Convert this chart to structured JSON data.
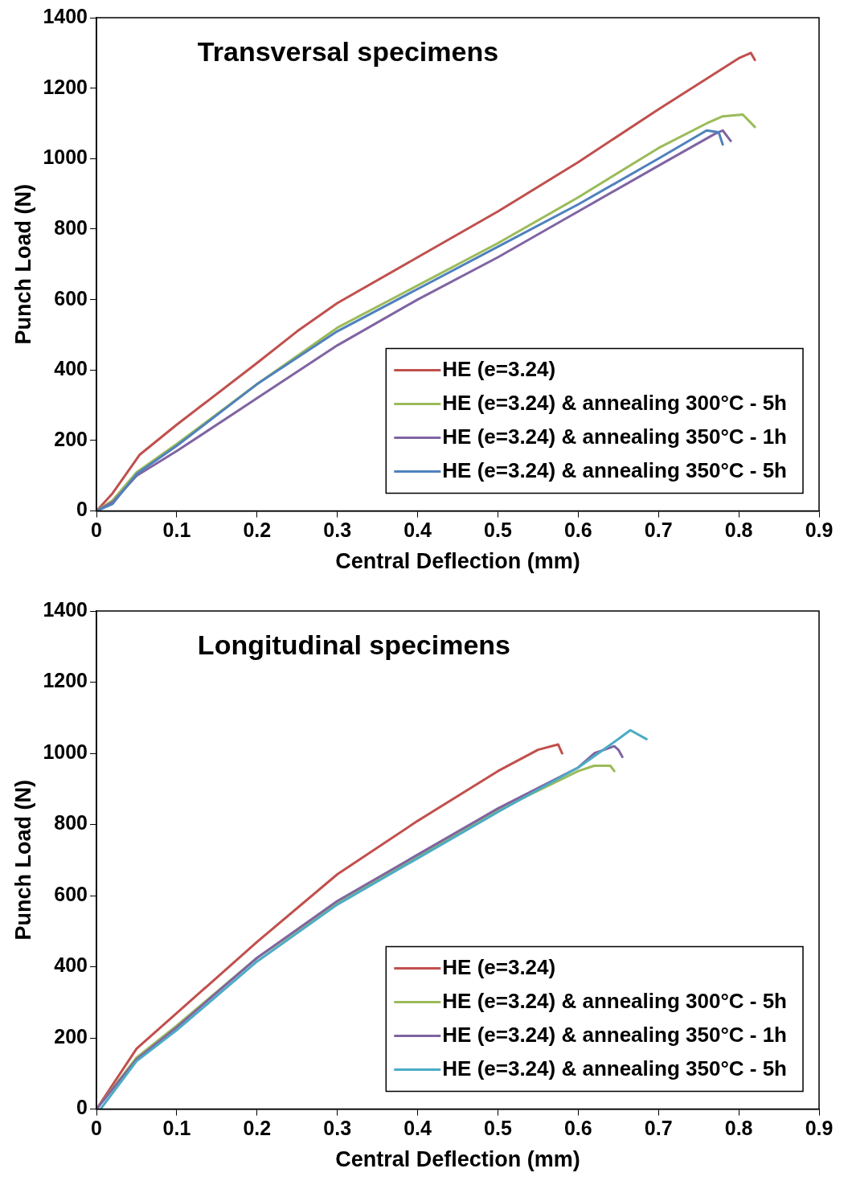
{
  "chart_data": [
    {
      "type": "line",
      "title": "Transversal specimens",
      "xlabel": "Central Deflection (mm)",
      "ylabel": "Punch Load (N)",
      "xlim": [
        0,
        0.9
      ],
      "xticks": [
        0,
        0.1,
        0.2,
        0.3,
        0.4,
        0.5,
        0.6,
        0.7,
        0.8,
        0.9
      ],
      "ylim": [
        0,
        1400
      ],
      "yticks": [
        0,
        200,
        400,
        600,
        800,
        1000,
        1200,
        1400
      ],
      "grid": false,
      "legend": "bottom right",
      "marker": "none",
      "line_style": "solid",
      "series": [
        {
          "name": "HE (e=3.24)",
          "color": "#c0504d",
          "x": [
            0,
            0.02,
            0.054,
            0.1,
            0.2,
            0.25,
            0.3,
            0.4,
            0.5,
            0.6,
            0.7,
            0.8,
            0.815,
            0.82
          ],
          "values": [
            0,
            50,
            160,
            245,
            420,
            510,
            590,
            720,
            850,
            990,
            1140,
            1285,
            1300,
            1280
          ]
        },
        {
          "name": "HE (e=3.24) & annealing 300°C - 5h",
          "color": "#9bbb59",
          "x": [
            0,
            0.02,
            0.05,
            0.1,
            0.2,
            0.3,
            0.4,
            0.5,
            0.6,
            0.7,
            0.76,
            0.78,
            0.805,
            0.82
          ],
          "values": [
            0,
            30,
            110,
            190,
            360,
            520,
            640,
            760,
            890,
            1030,
            1100,
            1120,
            1125,
            1090
          ]
        },
        {
          "name": "HE (e=3.24) & annealing 350°C - 1h",
          "color": "#8064a2",
          "x": [
            0,
            0.02,
            0.05,
            0.1,
            0.2,
            0.3,
            0.4,
            0.5,
            0.6,
            0.7,
            0.77,
            0.78,
            0.79
          ],
          "values": [
            0,
            25,
            100,
            170,
            320,
            470,
            600,
            720,
            850,
            980,
            1070,
            1080,
            1050
          ]
        },
        {
          "name": "HE (e=3.24) & annealing 350°C - 5h",
          "color": "#4f81bd",
          "x": [
            0,
            0.02,
            0.05,
            0.1,
            0.2,
            0.3,
            0.4,
            0.5,
            0.6,
            0.7,
            0.76,
            0.775,
            0.78
          ],
          "values": [
            0,
            20,
            105,
            185,
            360,
            510,
            630,
            750,
            870,
            1000,
            1080,
            1075,
            1040
          ]
        }
      ]
    },
    {
      "type": "line",
      "title": "Longitudinal specimens",
      "xlabel": "Central Deflection (mm)",
      "ylabel": "Punch Load (N)",
      "xlim": [
        0,
        0.9
      ],
      "xticks": [
        0,
        0.1,
        0.2,
        0.3,
        0.4,
        0.5,
        0.6,
        0.7,
        0.8,
        0.9
      ],
      "ylim": [
        0,
        1400
      ],
      "yticks": [
        0,
        200,
        400,
        600,
        800,
        1000,
        1200,
        1400
      ],
      "grid": false,
      "legend": "bottom right",
      "marker": "none",
      "line_style": "solid",
      "series": [
        {
          "name": "HE (e=3.24)",
          "color": "#c0504d",
          "x": [
            0,
            0.05,
            0.1,
            0.2,
            0.3,
            0.4,
            0.5,
            0.55,
            0.575,
            0.58
          ],
          "values": [
            0,
            170,
            270,
            470,
            660,
            810,
            950,
            1010,
            1025,
            1000
          ]
        },
        {
          "name": "HE (e=3.24) & annealing 300°C - 5h",
          "color": "#9bbb59",
          "x": [
            0,
            0.05,
            0.1,
            0.2,
            0.3,
            0.4,
            0.5,
            0.6,
            0.62,
            0.64,
            0.645
          ],
          "values": [
            0,
            145,
            235,
            425,
            580,
            710,
            840,
            950,
            965,
            965,
            950
          ]
        },
        {
          "name": "HE (e=3.24) & annealing 350°C - 1h",
          "color": "#8064a2",
          "x": [
            0,
            0.05,
            0.1,
            0.2,
            0.3,
            0.4,
            0.5,
            0.6,
            0.62,
            0.645,
            0.65,
            0.655
          ],
          "values": [
            0,
            140,
            230,
            425,
            585,
            715,
            845,
            960,
            1000,
            1020,
            1010,
            990
          ]
        },
        {
          "name": "HE (e=3.24) & annealing 350°C - 5h",
          "color": "#4bacc6",
          "x": [
            0.005,
            0.05,
            0.1,
            0.2,
            0.3,
            0.4,
            0.5,
            0.6,
            0.65,
            0.665,
            0.685
          ],
          "values": [
            0,
            135,
            222,
            415,
            575,
            705,
            835,
            960,
            1040,
            1065,
            1040
          ]
        }
      ]
    }
  ]
}
